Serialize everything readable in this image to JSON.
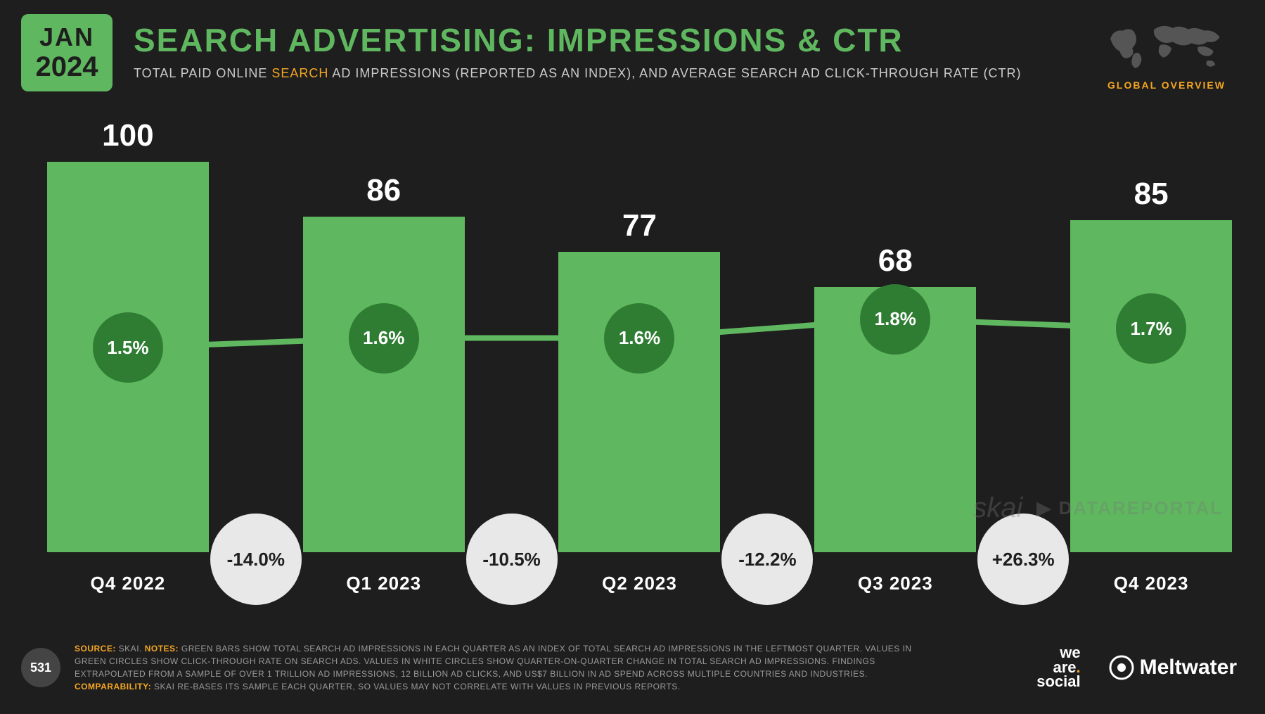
{
  "date_badge": {
    "month": "JAN",
    "year": "2024"
  },
  "header": {
    "title": "SEARCH ADVERTISING: IMPRESSIONS & CTR",
    "subtitle_pre": "TOTAL PAID ONLINE ",
    "subtitle_hl": "SEARCH",
    "subtitle_post": " AD IMPRESSIONS (REPORTED AS AN INDEX), AND AVERAGE SEARCH AD CLICK-THROUGH RATE (CTR)"
  },
  "globe_label": "GLOBAL OVERVIEW",
  "chart": {
    "type": "bar+line",
    "bar_color": "#5fb85f",
    "background_color": "#1e1e1e",
    "ctr_circle_color": "#2e7d32",
    "qoq_circle_color": "#e8e8e8",
    "line_color": "#5fb85f",
    "max_value": 100,
    "value_fontsize": 44,
    "label_fontsize": 26,
    "ctr_fontsize": 26,
    "bars": [
      {
        "label": "Q4 2022",
        "value": 100,
        "ctr": "1.5%"
      },
      {
        "label": "Q1 2023",
        "value": 86,
        "ctr": "1.6%"
      },
      {
        "label": "Q2 2023",
        "value": 77,
        "ctr": "1.6%"
      },
      {
        "label": "Q3 2023",
        "value": 68,
        "ctr": "1.8%"
      },
      {
        "label": "Q4 2023",
        "value": 85,
        "ctr": "1.7%"
      }
    ],
    "qoq": [
      "-14.0%",
      "-10.5%",
      "-12.2%",
      "+26.3%"
    ],
    "ctr_values": [
      1.5,
      1.6,
      1.6,
      1.8,
      1.7
    ]
  },
  "watermark": {
    "skai": "skai",
    "dr": "DATAREPORTAL"
  },
  "footer": {
    "page": "531",
    "source_label": "SOURCE:",
    "source_text": " SKAI. ",
    "notes_label": "NOTES:",
    "notes_text": " GREEN BARS SHOW TOTAL SEARCH AD IMPRESSIONS IN EACH QUARTER AS AN INDEX OF TOTAL SEARCH AD IMPRESSIONS IN THE LEFTMOST QUARTER. VALUES IN GREEN CIRCLES SHOW CLICK-THROUGH RATE ON SEARCH ADS. VALUES IN WHITE CIRCLES SHOW QUARTER-ON-QUARTER CHANGE IN TOTAL SEARCH AD IMPRESSIONS. FINDINGS EXTRAPOLATED FROM A SAMPLE OF OVER 1 TRILLION AD IMPRESSIONS, 12 BILLION AD CLICKS, AND US$7 BILLION IN AD SPEND ACROSS MULTIPLE COUNTRIES AND INDUSTRIES. ",
    "comp_label": "COMPARABILITY:",
    "comp_text": " SKAI RE-BASES ITS SAMPLE EACH QUARTER, SO VALUES MAY NOT CORRELATE WITH VALUES IN PREVIOUS REPORTS."
  },
  "logos": {
    "was_line1": "we",
    "was_line2": "are",
    "was_line3": "social",
    "meltwater": "Meltwater"
  }
}
